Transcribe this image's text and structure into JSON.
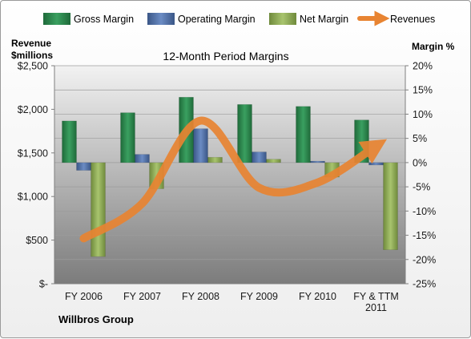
{
  "chart_data": {
    "type": "bar",
    "title": "12-Month Period Margins",
    "categories": [
      "FY 2006",
      "FY 2007",
      "FY 2008",
      "FY 2009",
      "FY 2010",
      "FY & TTM 2011"
    ],
    "y_left": {
      "label_line1": "Revenue",
      "label_line2": "$millions",
      "ticks": [
        "$2,500",
        "$2,000",
        "$1,500",
        "$1,000",
        "$500",
        "$-"
      ],
      "ylim": [
        0,
        2500
      ]
    },
    "y_right": {
      "label": "Margin %",
      "ticks": [
        "20%",
        "15%",
        "10%",
        "5%",
        "0%",
        "-5%",
        "-10%",
        "-15%",
        "-20%",
        "-25%"
      ],
      "ylim": [
        -25,
        20
      ]
    },
    "legend_position": "top",
    "series": [
      {
        "name": "Gross Margin",
        "kind": "bar",
        "axis": "right",
        "color": "#2e8b4f",
        "values": [
          8.6,
          10.3,
          13.5,
          12.0,
          11.6,
          8.8
        ]
      },
      {
        "name": "Operating Margin",
        "kind": "bar",
        "axis": "right",
        "color": "#4f6fa8",
        "values": [
          -1.6,
          1.7,
          7.0,
          2.2,
          0.3,
          -0.5
        ]
      },
      {
        "name": "Net Margin",
        "kind": "bar",
        "axis": "right",
        "color": "#93ae5a",
        "values": [
          -19.4,
          -5.4,
          1.1,
          0.7,
          -3.0,
          -18.0
        ]
      },
      {
        "name": "Revenues",
        "kind": "line",
        "axis": "left",
        "color": "#e88432",
        "values": [
          520,
          920,
          1870,
          1100,
          1160,
          1580
        ]
      }
    ],
    "grid": true
  },
  "footer": {
    "company": "Willbros Group"
  }
}
